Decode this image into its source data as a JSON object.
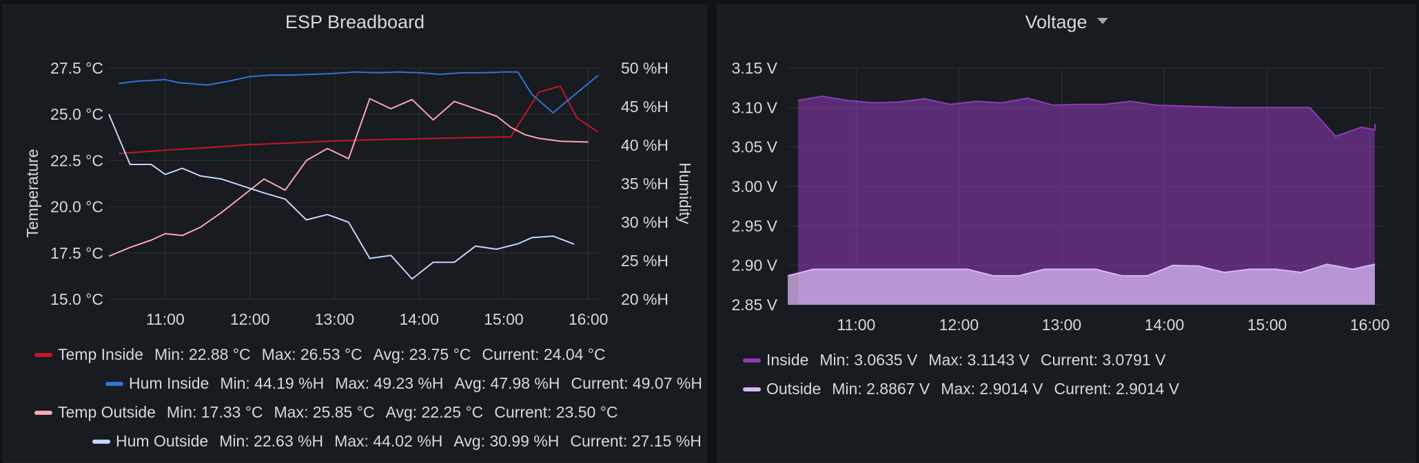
{
  "panels": {
    "left": {
      "title": "ESP Breadboard"
    },
    "right": {
      "title": "Voltage"
    }
  },
  "legend_left": [
    {
      "name": "Temp Inside",
      "color": "#c4162a",
      "stats": [
        "Min: 22.88 °C",
        "Max: 26.53 °C",
        "Avg: 23.75 °C",
        "Current: 24.04 °C"
      ]
    },
    {
      "name": "Hum Inside",
      "color": "#3274d9",
      "stats": [
        "Min: 44.19 %H",
        "Max: 49.23 %H",
        "Avg: 47.98 %H",
        "Current: 49.07 %H"
      ]
    },
    {
      "name": "Temp Outside",
      "color": "#ffa6b0",
      "stats": [
        "Min: 17.33 °C",
        "Max: 25.85 °C",
        "Avg: 22.25 °C",
        "Current: 23.50 °C"
      ]
    },
    {
      "name": "Hum Outside",
      "color": "#c0d8ff",
      "stats": [
        "Min: 22.63 %H",
        "Max: 44.02 %H",
        "Avg: 30.99 %H",
        "Current: 27.15 %H"
      ]
    }
  ],
  "legend_right": [
    {
      "name": "Inside",
      "color": "#8f3bb8",
      "stats": [
        "Min: 3.0635 V",
        "Max: 3.1143 V",
        "Current: 3.0791 V"
      ]
    },
    {
      "name": "Outside",
      "color": "#d9b8f5",
      "stats": [
        "Min: 2.8867 V",
        "Max: 2.9014 V",
        "Current: 2.9014 V"
      ]
    }
  ],
  "chart_data": [
    {
      "type": "line",
      "title": "ESP Breadboard",
      "ylabel": "Temperature",
      "y2label": "Humidity",
      "x_ticks": [
        "11:00",
        "12:00",
        "13:00",
        "14:00",
        "15:00",
        "16:00"
      ],
      "x_range": [
        "10:20",
        "16:07"
      ],
      "y_ticks": [
        "15.0 °C",
        "17.5 °C",
        "20.0 °C",
        "22.5 °C",
        "25.0 °C",
        "27.5 °C"
      ],
      "ylim": [
        15.0,
        27.5
      ],
      "y2_ticks": [
        "20 %H",
        "25 %H",
        "30 %H",
        "35 %H",
        "40 %H",
        "45 %H",
        "50 %H"
      ],
      "y2lim": [
        20,
        50
      ],
      "grid": true,
      "legend_position": "bottom",
      "series": [
        {
          "name": "Temp Inside",
          "axis": "left",
          "color": "#c4162a",
          "points": [
            [
              "10:27",
              22.88
            ],
            [
              "11:00",
              23.06
            ],
            [
              "11:30",
              23.2
            ],
            [
              "12:00",
              23.36
            ],
            [
              "12:30",
              23.46
            ],
            [
              "13:00",
              23.56
            ],
            [
              "13:30",
              23.63
            ],
            [
              "14:00",
              23.68
            ],
            [
              "14:30",
              23.73
            ],
            [
              "15:05",
              23.78
            ],
            [
              "15:25",
              26.2
            ],
            [
              "15:40",
              26.53
            ],
            [
              "15:52",
              24.8
            ],
            [
              "16:07",
              24.04
            ]
          ]
        },
        {
          "name": "Hum Inside",
          "axis": "right",
          "color": "#3274d9",
          "points": [
            [
              "10:27",
              48.0
            ],
            [
              "10:40",
              48.3
            ],
            [
              "11:00",
              48.5
            ],
            [
              "11:10",
              48.1
            ],
            [
              "11:30",
              47.8
            ],
            [
              "11:45",
              48.3
            ],
            [
              "12:00",
              48.9
            ],
            [
              "12:15",
              49.1
            ],
            [
              "12:30",
              49.1
            ],
            [
              "12:45",
              49.2
            ],
            [
              "13:00",
              49.3
            ],
            [
              "13:15",
              49.5
            ],
            [
              "13:30",
              49.4
            ],
            [
              "13:45",
              49.5
            ],
            [
              "14:00",
              49.4
            ],
            [
              "14:15",
              49.2
            ],
            [
              "14:30",
              49.4
            ],
            [
              "14:45",
              49.4
            ],
            [
              "15:00",
              49.5
            ],
            [
              "15:10",
              49.5
            ],
            [
              "15:20",
              46.6
            ],
            [
              "15:35",
              44.2
            ],
            [
              "15:50",
              46.5
            ],
            [
              "16:07",
              49.07
            ]
          ]
        },
        {
          "name": "Temp Outside",
          "axis": "left",
          "color": "#ffa6b0",
          "points": [
            [
              "10:20",
              17.33
            ],
            [
              "10:35",
              17.8
            ],
            [
              "10:50",
              18.2
            ],
            [
              "11:00",
              18.55
            ],
            [
              "11:12",
              18.45
            ],
            [
              "11:25",
              18.9
            ],
            [
              "11:40",
              19.7
            ],
            [
              "12:00",
              20.9
            ],
            [
              "12:10",
              21.5
            ],
            [
              "12:25",
              20.9
            ],
            [
              "12:40",
              22.5
            ],
            [
              "12:55",
              23.15
            ],
            [
              "13:10",
              22.6
            ],
            [
              "13:25",
              25.85
            ],
            [
              "13:40",
              25.3
            ],
            [
              "13:55",
              25.8
            ],
            [
              "14:10",
              24.7
            ],
            [
              "14:25",
              25.7
            ],
            [
              "14:40",
              25.3
            ],
            [
              "14:55",
              24.9
            ],
            [
              "15:05",
              24.3
            ],
            [
              "15:15",
              23.9
            ],
            [
              "15:25",
              23.7
            ],
            [
              "15:40",
              23.55
            ],
            [
              "16:00",
              23.5
            ]
          ]
        },
        {
          "name": "Hum Outside",
          "axis": "right",
          "color": "#c0d8ff",
          "points": [
            [
              "10:20",
              44.02
            ],
            [
              "10:35",
              37.5
            ],
            [
              "10:50",
              37.5
            ],
            [
              "11:00",
              36.2
            ],
            [
              "11:12",
              37.0
            ],
            [
              "11:25",
              36.0
            ],
            [
              "11:40",
              35.6
            ],
            [
              "11:55",
              34.7
            ],
            [
              "12:10",
              33.8
            ],
            [
              "12:25",
              33.0
            ],
            [
              "12:40",
              30.3
            ],
            [
              "12:55",
              31.0
            ],
            [
              "13:10",
              30.0
            ],
            [
              "13:25",
              25.3
            ],
            [
              "13:40",
              25.7
            ],
            [
              "13:55",
              22.63
            ],
            [
              "14:10",
              24.8
            ],
            [
              "14:25",
              24.8
            ],
            [
              "14:40",
              26.9
            ],
            [
              "14:55",
              26.5
            ],
            [
              "15:10",
              27.2
            ],
            [
              "15:20",
              28.0
            ],
            [
              "15:35",
              28.2
            ],
            [
              "15:50",
              27.15
            ]
          ]
        }
      ]
    },
    {
      "type": "area",
      "title": "Voltage",
      "x_ticks": [
        "11:00",
        "12:00",
        "13:00",
        "14:00",
        "15:00",
        "16:00"
      ],
      "x_range": [
        "10:20",
        "16:07"
      ],
      "y_ticks": [
        "2.85 V",
        "2.90 V",
        "2.95 V",
        "3.00 V",
        "3.05 V",
        "3.10 V",
        "3.15 V"
      ],
      "ylim": [
        2.85,
        3.15
      ],
      "grid": true,
      "legend_position": "bottom",
      "series": [
        {
          "name": "Inside",
          "color": "#8f3bb8",
          "points": [
            [
              "10:26",
              3.109
            ],
            [
              "10:40",
              3.1143
            ],
            [
              "10:55",
              3.109
            ],
            [
              "11:10",
              3.106
            ],
            [
              "11:25",
              3.107
            ],
            [
              "11:40",
              3.111
            ],
            [
              "11:55",
              3.104
            ],
            [
              "12:10",
              3.108
            ],
            [
              "12:25",
              3.106
            ],
            [
              "12:40",
              3.112
            ],
            [
              "12:55",
              3.103
            ],
            [
              "13:10",
              3.104
            ],
            [
              "13:25",
              3.104
            ],
            [
              "13:40",
              3.108
            ],
            [
              "13:55",
              3.103
            ],
            [
              "14:10",
              3.102
            ],
            [
              "14:25",
              3.101
            ],
            [
              "14:40",
              3.1
            ],
            [
              "14:55",
              3.1
            ],
            [
              "15:10",
              3.1
            ],
            [
              "15:25",
              3.1
            ],
            [
              "15:40",
              3.0635
            ],
            [
              "15:55",
              3.075
            ],
            [
              "16:05",
              3.072
            ],
            [
              "16:17",
              3.0791
            ]
          ]
        },
        {
          "name": "Outside",
          "color": "#d9b8f5",
          "points": [
            [
              "10:20",
              2.8867
            ],
            [
              "10:35",
              2.895
            ],
            [
              "10:50",
              2.895
            ],
            [
              "11:05",
              2.895
            ],
            [
              "11:20",
              2.895
            ],
            [
              "11:35",
              2.895
            ],
            [
              "11:50",
              2.895
            ],
            [
              "12:05",
              2.895
            ],
            [
              "12:20",
              2.8867
            ],
            [
              "12:35",
              2.8867
            ],
            [
              "12:50",
              2.895
            ],
            [
              "13:05",
              2.895
            ],
            [
              "13:20",
              2.895
            ],
            [
              "13:35",
              2.8867
            ],
            [
              "13:50",
              2.8867
            ],
            [
              "14:05",
              2.9
            ],
            [
              "14:20",
              2.899
            ],
            [
              "14:35",
              2.891
            ],
            [
              "14:50",
              2.895
            ],
            [
              "15:05",
              2.895
            ],
            [
              "15:20",
              2.891
            ],
            [
              "15:35",
              2.9014
            ],
            [
              "15:50",
              2.895
            ],
            [
              "16:05",
              2.9014
            ]
          ]
        }
      ]
    }
  ]
}
